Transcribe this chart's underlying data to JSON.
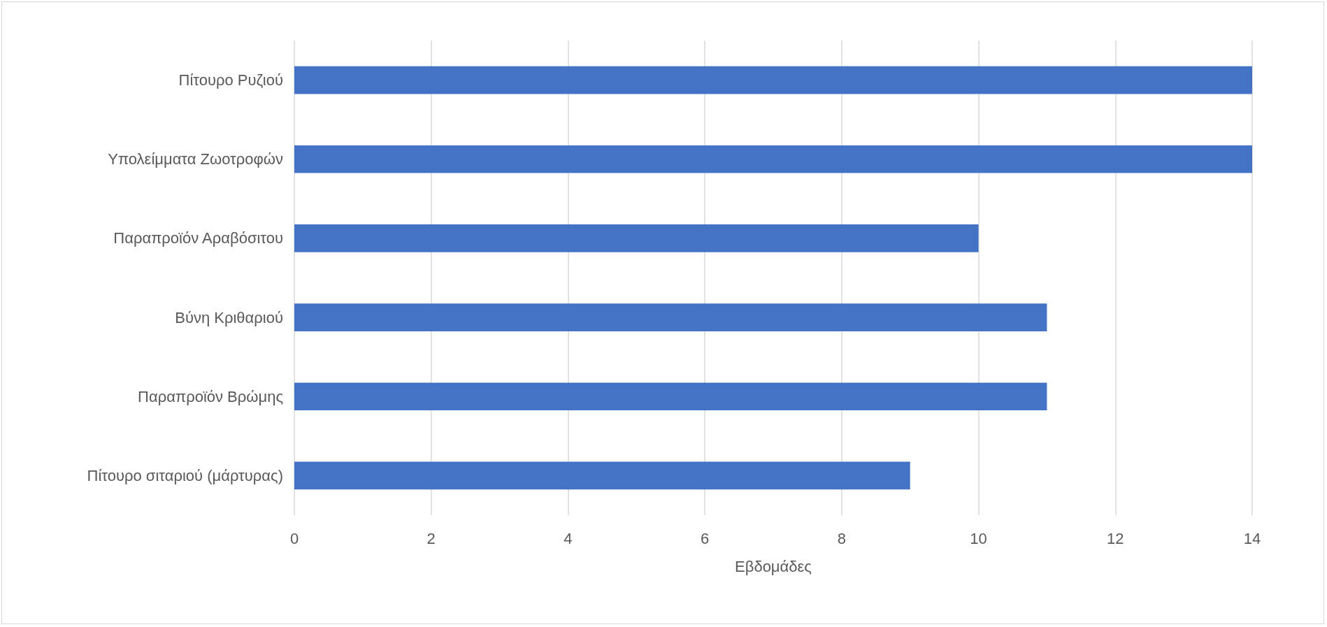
{
  "chart_data": {
    "type": "bar",
    "orientation": "horizontal",
    "xlabel": "Εβδομάδες",
    "categories": [
      "Πίτουρο Ρυζιού",
      "Υπολείμματα Ζωοτροφών",
      "Παραπροϊόν Αραβόσιτου",
      "Βύνη Κριθαριού",
      "Παραπροϊόν Βρώμης",
      "Πίτουρο σιταριού (μάρτυρας)"
    ],
    "values": [
      14,
      14,
      10,
      11,
      11,
      9
    ],
    "color": "#4472c4",
    "xlim": [
      0,
      14
    ],
    "xticks": [
      0,
      2,
      4,
      6,
      8,
      10,
      12,
      14
    ],
    "grid": "x"
  }
}
